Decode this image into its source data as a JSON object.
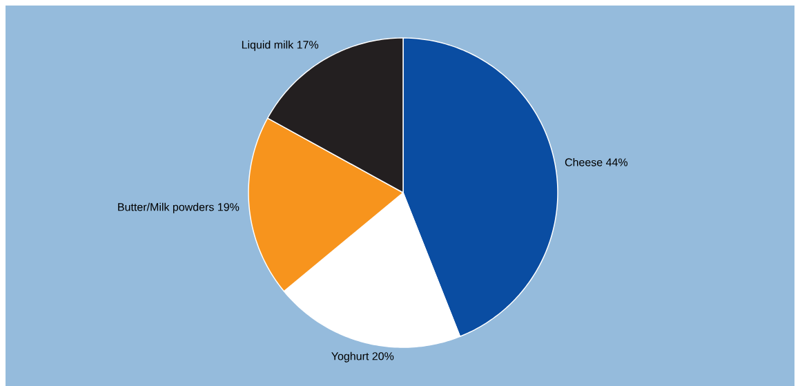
{
  "chart_data": {
    "type": "pie",
    "categories": [
      "Cheese",
      "Yoghurt",
      "Butter/Milk powders",
      "Liquid milk"
    ],
    "values": [
      44,
      20,
      19,
      17
    ],
    "value_labels": [
      "44%",
      "20%",
      "19%",
      "17%"
    ],
    "colors": [
      "#0a4da2",
      "#ffffff",
      "#f7941d",
      "#231f20"
    ]
  }
}
